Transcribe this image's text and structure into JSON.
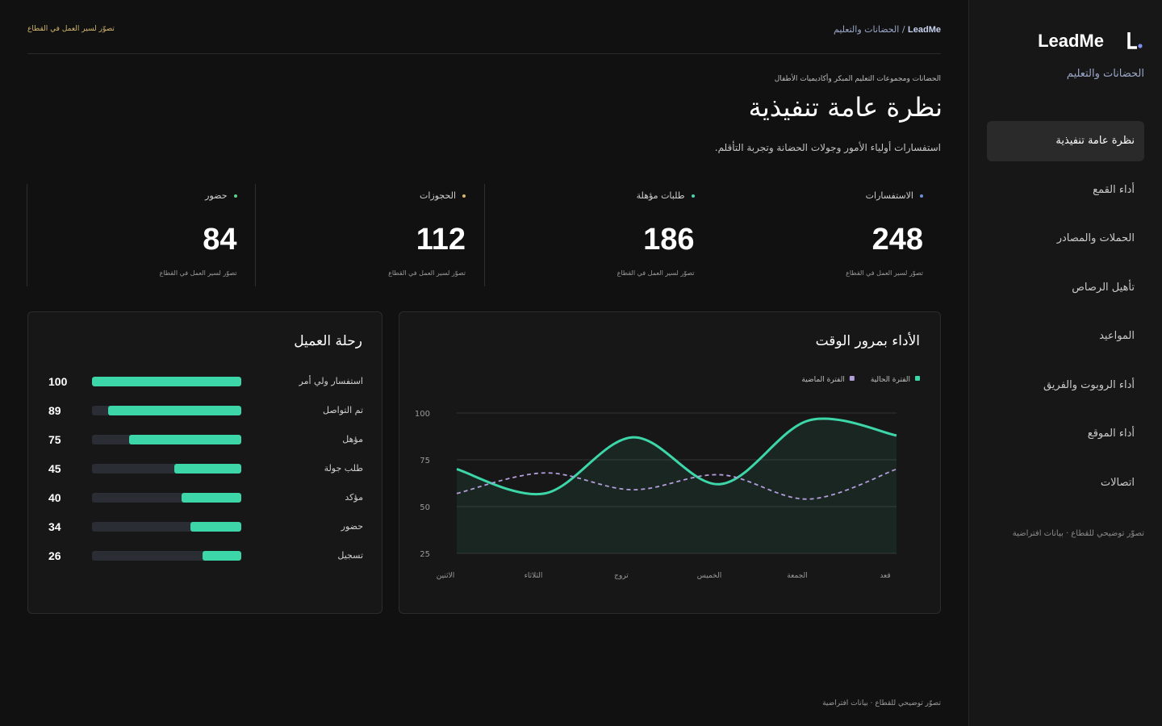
{
  "sidebar": {
    "brand": "LeadMe",
    "subtitle": "الحضانات والتعليم",
    "nav": [
      "نظرة عامة تنفيذية",
      "أداء القمع",
      "الحملات والمصادر",
      "تأهيل الرصاص",
      "المواعيد",
      "أداء الروبوت والفريق",
      "أداء الموقع",
      "اتصالات"
    ],
    "note": "تصوّر توضيحي للقطاع · بيانات افتراضية"
  },
  "topbar": {
    "breadcrumb_brand": "LeadMe",
    "breadcrumb_sep": "/",
    "breadcrumb_section": "الحضانات والتعليم",
    "flow": "تصوّر لسير العمل في القطاع"
  },
  "header": {
    "eyebrow": "الحضانات ومجموعات التعليم المبكر وأكاديميات الأطفال",
    "title": "نظرة عامة تنفيذية",
    "subtitle": "استفسارات أولياء الأمور وجولات الحضانة وتجربة التأقلم."
  },
  "kpis": [
    {
      "label": "الاستفسارات",
      "value": 248,
      "note": "تصوّر لسير العمل في القطاع",
      "color": "#6f8fd8"
    },
    {
      "label": "طلبات مؤهلة",
      "value": 186,
      "note": "تصوّر لسير العمل في القطاع",
      "color": "#45d6b0"
    },
    {
      "label": "الحجوزات",
      "value": 112,
      "note": "تصوّر لسير العمل في القطاع",
      "color": "#d9b76a"
    },
    {
      "label": "حضور",
      "value": 84,
      "note": "تصوّر لسير العمل في القطاع",
      "color": "#5fd08a"
    }
  ],
  "line_chart": {
    "type": "line",
    "title": "الأداء بمرور الوقت",
    "categories": [
      "الاثنين",
      "الثلاثاء",
      "تروج",
      "الخميس",
      "الجمعة",
      "قعد"
    ],
    "series": [
      {
        "name": "الفترة الحالية",
        "color": "#3dd6a8",
        "values": [
          70,
          57,
          87,
          62,
          96,
          88
        ]
      },
      {
        "name": "الفترة الماضية",
        "color": "#b39ddb",
        "values": [
          57,
          68,
          59,
          67,
          54,
          70
        ]
      }
    ],
    "ylim": [
      25,
      100
    ],
    "yticks": [
      25,
      50,
      75,
      100
    ],
    "grid": true
  },
  "funnel": {
    "type": "bar",
    "title": "رحلة العميل",
    "categories": [
      "استفسار ولي أمر",
      "تم التواصل",
      "مؤهل",
      "طلب جولة",
      "مؤكد",
      "حضور",
      "تسجيل"
    ],
    "values": [
      100,
      89,
      75,
      45,
      40,
      34,
      26
    ],
    "color": "#3dd6a8",
    "xlim": [
      0,
      100
    ]
  },
  "footer": "تصوّر توضيحي للقطاع · بيانات افتراضية"
}
